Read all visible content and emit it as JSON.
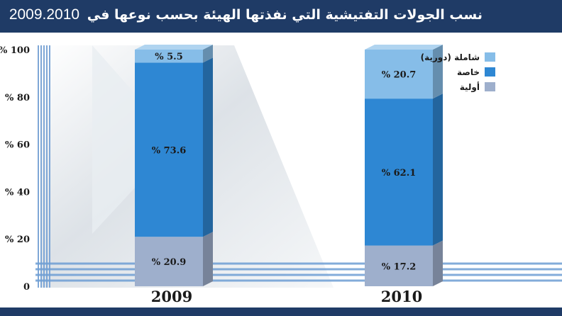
{
  "title": {
    "text": "نسب الجولات التفتيشية التي نفذتها الهيئة بحسب نوعها في",
    "years": "2009.2010"
  },
  "chart_data": {
    "type": "bar",
    "stacked": true,
    "orientation": "vertical",
    "three_d": true,
    "categories": [
      "2009",
      "2010"
    ],
    "series": [
      {
        "name": "أولية",
        "values": [
          20.9,
          17.2
        ],
        "labels": [
          "% 20.9",
          "% 17.2"
        ],
        "color": "#9eafcc"
      },
      {
        "name": "خاصة",
        "values": [
          73.6,
          62.1
        ],
        "labels": [
          "% 73.6",
          "% 62.1"
        ],
        "color": "#2e87d3"
      },
      {
        "name": "شاملة (دورية)",
        "values": [
          5.5,
          20.7
        ],
        "labels": [
          "% 5.5",
          "% 20.7"
        ],
        "color": "#86bde8"
      }
    ],
    "ylim": [
      0,
      100
    ],
    "yticks": [
      0,
      20,
      40,
      60,
      80,
      100
    ],
    "ytick_labels": [
      "0",
      "% 20",
      "% 40",
      "% 60",
      "% 80",
      "% 100"
    ],
    "legend_position": "top-right",
    "grid": false
  }
}
